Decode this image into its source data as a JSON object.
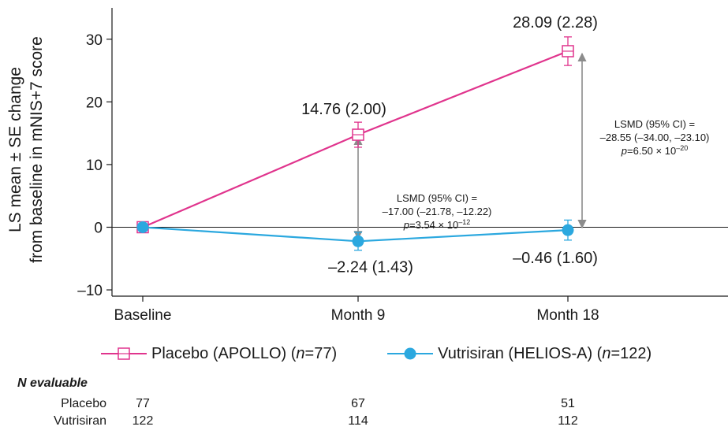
{
  "chart_data": {
    "type": "line",
    "ylabel_line1": "LS mean ± SE change",
    "ylabel_line2": "from baseline in mNIS+7 score",
    "xlabel": "",
    "categories": [
      "Baseline",
      "Month 9",
      "Month 18"
    ],
    "ylim": [
      -11,
      35
    ],
    "yticks": [
      "30",
      "20",
      "10",
      "0",
      "–10"
    ],
    "ytick_values": [
      30,
      20,
      10,
      0,
      -10
    ],
    "series": [
      {
        "name_main": "Placebo (APOLLO) (",
        "name_n": "n",
        "name_rest": "=77)",
        "color": "#e0348d",
        "marker": "open-square",
        "values": [
          0,
          14.76,
          28.09
        ],
        "se": [
          0,
          2.0,
          2.28
        ],
        "labels": [
          "",
          "14.76 (2.00)",
          "28.09 (2.28)"
        ]
      },
      {
        "name_main": "Vutrisiran (HELIOS-A) (",
        "name_n": "n",
        "name_rest": "=122)",
        "color": "#2ba8df",
        "marker": "filled-circle",
        "values": [
          0,
          -2.24,
          -0.46
        ],
        "se": [
          0,
          1.43,
          1.6
        ],
        "labels": [
          "",
          "–2.24 (1.43)",
          "–0.46 (1.60)"
        ]
      }
    ],
    "annotations": [
      {
        "at": "Month 9",
        "line1": "LSMD (95% CI) =",
        "line2": "–17.00 (–21.78, –12.22)",
        "p_prefix": "p",
        "p_mid": "=3.54 × 10",
        "p_exp": "–12"
      },
      {
        "at": "Month 18",
        "line1": "LSMD (95% CI) =",
        "line2": "–28.55 (–34.00, –23.10)",
        "p_prefix": "p",
        "p_mid": "=6.50 × 10",
        "p_exp": "–20"
      }
    ],
    "reference_line": 0,
    "grid": false,
    "legend_position": "bottom"
  },
  "n_table": {
    "header_italic": "N",
    "header_rest": " evaluable",
    "rows": [
      {
        "label": "Placebo",
        "values": [
          "77",
          "67",
          "51"
        ]
      },
      {
        "label": "Vutrisiran",
        "values": [
          "122",
          "114",
          "112"
        ]
      }
    ]
  },
  "colors": {
    "placebo": "#e0348d",
    "vutrisiran": "#2ba8df",
    "axis": "#1a1a1a",
    "arrow": "#8c8c8c"
  }
}
